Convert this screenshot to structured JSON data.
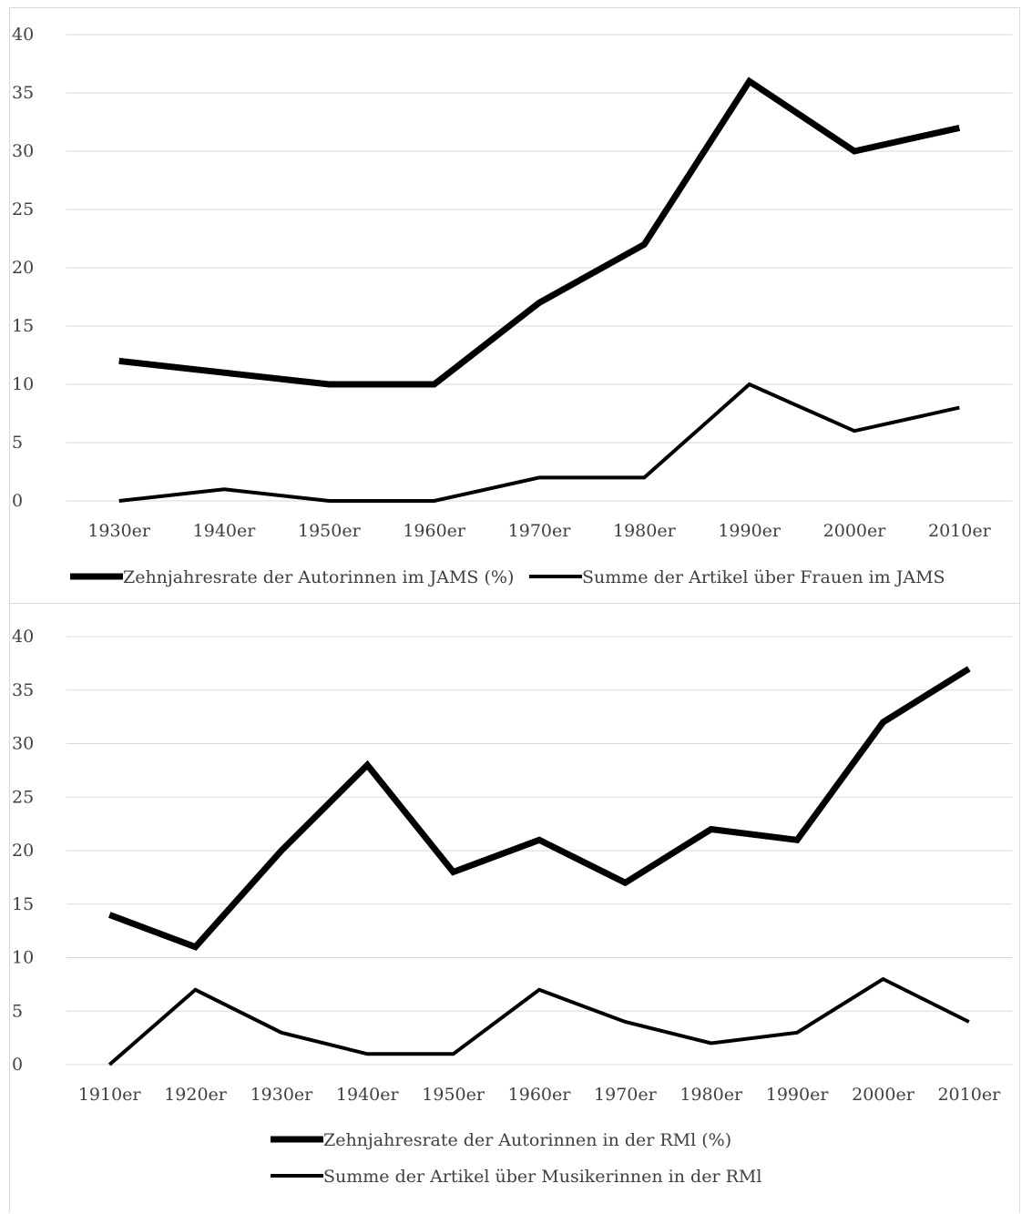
{
  "chart_data": [
    {
      "type": "line",
      "categories": [
        "1930er",
        "1940er",
        "1950er",
        "1960er",
        "1970er",
        "1980er",
        "1990er",
        "2000er",
        "2010er"
      ],
      "series": [
        {
          "name": "Zehnjahresrate der Autorinnen im JAMS (%)",
          "values": [
            12,
            11,
            10,
            10,
            17,
            22,
            36,
            30,
            32
          ],
          "weight": "heavy"
        },
        {
          "name": "Summe der Artikel über Frauen im JAMS",
          "values": [
            0,
            1,
            0,
            0,
            2,
            2,
            10,
            6,
            8
          ],
          "weight": "light"
        }
      ],
      "ylim": [
        0,
        40
      ],
      "yticks": [
        0,
        5,
        10,
        15,
        20,
        25,
        30,
        35,
        40
      ],
      "grid": true,
      "legend": "bottom",
      "colors": {
        "line": "#000000",
        "grid": "#d9d9d9",
        "text": "#404040"
      }
    },
    {
      "type": "line",
      "categories": [
        "1910er",
        "1920er",
        "1930er",
        "1940er",
        "1950er",
        "1960er",
        "1970er",
        "1980er",
        "1990er",
        "2000er",
        "2010er"
      ],
      "series": [
        {
          "name": "Zehnjahresrate der Autorinnen in der RMl (%)",
          "values": [
            14,
            11,
            20,
            28,
            18,
            21,
            17,
            22,
            21,
            32,
            37
          ],
          "weight": "heavy"
        },
        {
          "name": "Summe der Artikel über Musikerinnen in der RMl",
          "values": [
            0,
            7,
            3,
            1,
            1,
            7,
            4,
            2,
            3,
            8,
            4
          ],
          "weight": "light"
        }
      ],
      "ylim": [
        0,
        40
      ],
      "yticks": [
        0,
        5,
        10,
        15,
        20,
        25,
        30,
        35,
        40
      ],
      "grid": true,
      "legend": "bottom",
      "colors": {
        "line": "#000000",
        "grid": "#d9d9d9",
        "text": "#404040"
      }
    }
  ]
}
